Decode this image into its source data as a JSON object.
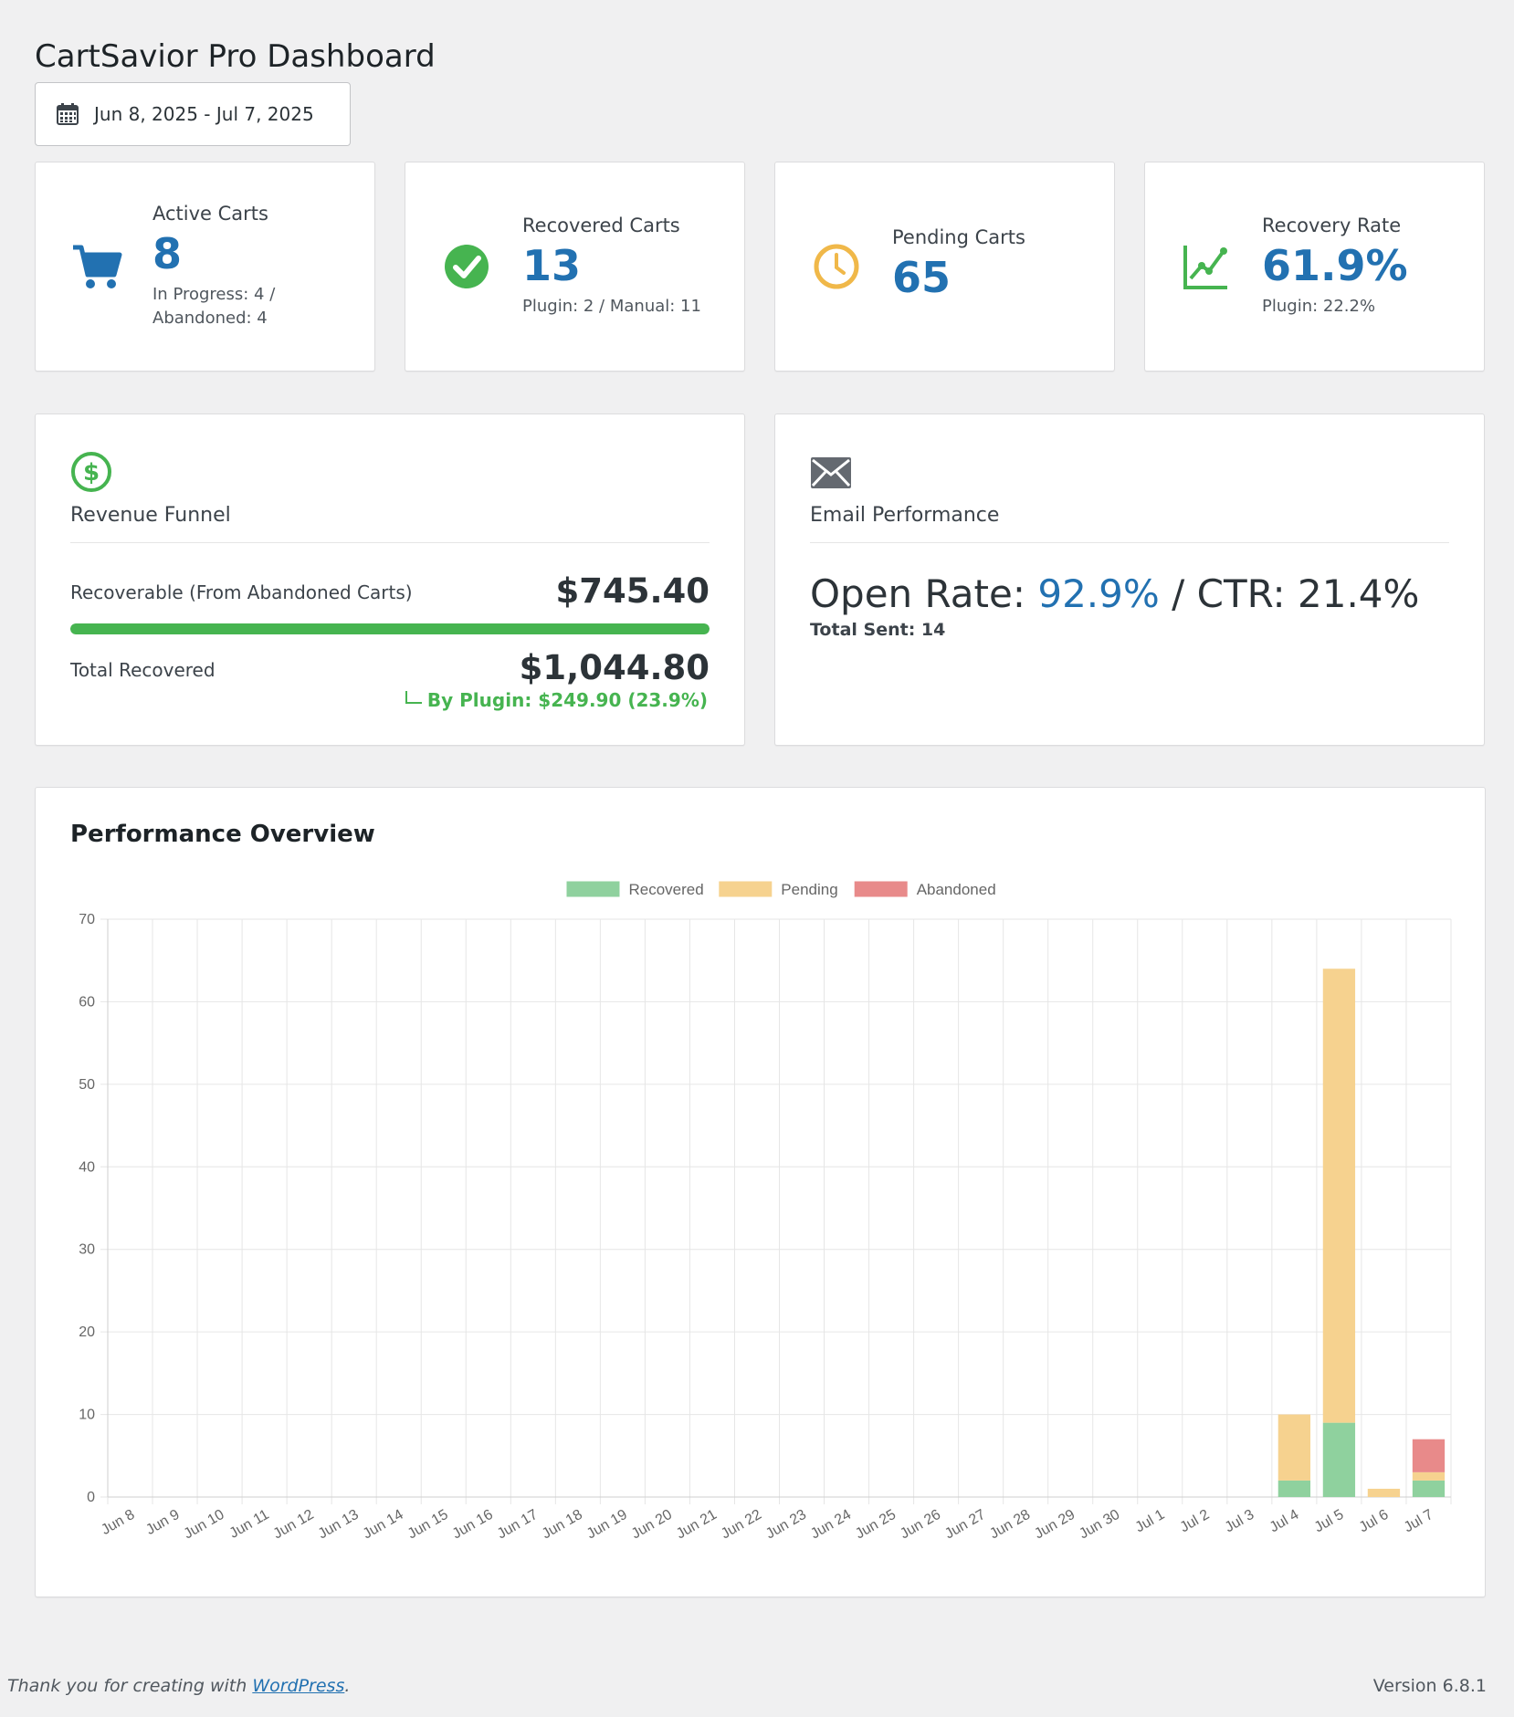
{
  "page": {
    "title": "CartSavior Pro Dashboard"
  },
  "date_range": {
    "label": "Jun 8, 2025 - Jul 7, 2025",
    "icon": "calendar-icon"
  },
  "kpis": [
    {
      "label": "Active Carts",
      "value": "8",
      "sub": "In Progress: 4 / Abandoned: 4",
      "icon": "cart-icon",
      "color": "#2271b1"
    },
    {
      "label": "Recovered Carts",
      "value": "13",
      "sub": "Plugin: 2 / Manual: 11",
      "icon": "check-circle-icon",
      "color": "#46b450"
    },
    {
      "label": "Pending Carts",
      "value": "65",
      "sub": "",
      "icon": "clock-icon",
      "color": "#f0b849"
    },
    {
      "label": "Recovery Rate",
      "value": "61.9%",
      "sub": "Plugin: 22.2%",
      "icon": "chart-line-icon",
      "color": "#46b450"
    }
  ],
  "revenue": {
    "title": "Revenue Funnel",
    "icon": "dollar-circle-icon",
    "recoverable_label": "Recoverable (From Abandoned Carts)",
    "recoverable_value": "$745.40",
    "progress": 1.0,
    "recovered_label": "Total Recovered",
    "recovered_value": "$1,044.80",
    "by_plugin": "By Plugin: $249.90 (23.9%)"
  },
  "email": {
    "title": "Email Performance",
    "icon": "envelope-icon",
    "open_rate_label": "Open Rate: ",
    "open_rate_value": "92.9%",
    "ctr_text": " / CTR: 21.4%",
    "total_sent": "Total Sent: 14"
  },
  "chart_title": "Performance Overview",
  "chart_data": {
    "type": "bar",
    "stacked": true,
    "categories": [
      "Jun 8",
      "Jun 9",
      "Jun 10",
      "Jun 11",
      "Jun 12",
      "Jun 13",
      "Jun 14",
      "Jun 15",
      "Jun 16",
      "Jun 17",
      "Jun 18",
      "Jun 19",
      "Jun 20",
      "Jun 21",
      "Jun 22",
      "Jun 23",
      "Jun 24",
      "Jun 25",
      "Jun 26",
      "Jun 27",
      "Jun 28",
      "Jun 29",
      "Jun 30",
      "Jul 1",
      "Jul 2",
      "Jul 3",
      "Jul 4",
      "Jul 5",
      "Jul 6",
      "Jul 7"
    ],
    "series": [
      {
        "name": "Recovered",
        "color": "#8fd19e",
        "values": [
          0,
          0,
          0,
          0,
          0,
          0,
          0,
          0,
          0,
          0,
          0,
          0,
          0,
          0,
          0,
          0,
          0,
          0,
          0,
          0,
          0,
          0,
          0,
          0,
          0,
          0,
          2,
          9,
          0,
          2
        ]
      },
      {
        "name": "Pending",
        "color": "#f6d28f",
        "values": [
          0,
          0,
          0,
          0,
          0,
          0,
          0,
          0,
          0,
          0,
          0,
          0,
          0,
          0,
          0,
          0,
          0,
          0,
          0,
          0,
          0,
          0,
          0,
          0,
          0,
          0,
          8,
          55,
          1,
          1
        ]
      },
      {
        "name": "Abandoned",
        "color": "#e88a8a",
        "values": [
          0,
          0,
          0,
          0,
          0,
          0,
          0,
          0,
          0,
          0,
          0,
          0,
          0,
          0,
          0,
          0,
          0,
          0,
          0,
          0,
          0,
          0,
          0,
          0,
          0,
          0,
          0,
          0,
          0,
          4
        ]
      }
    ],
    "ylim": [
      0,
      70
    ],
    "yticks": [
      0,
      10,
      20,
      30,
      40,
      50,
      60,
      70
    ],
    "grid": true,
    "legend": "top-center"
  },
  "footer": {
    "thanks_prefix": "Thank you for creating with ",
    "thanks_link": "WordPress",
    "thanks_suffix": ".",
    "version": "Version 6.8.1"
  }
}
